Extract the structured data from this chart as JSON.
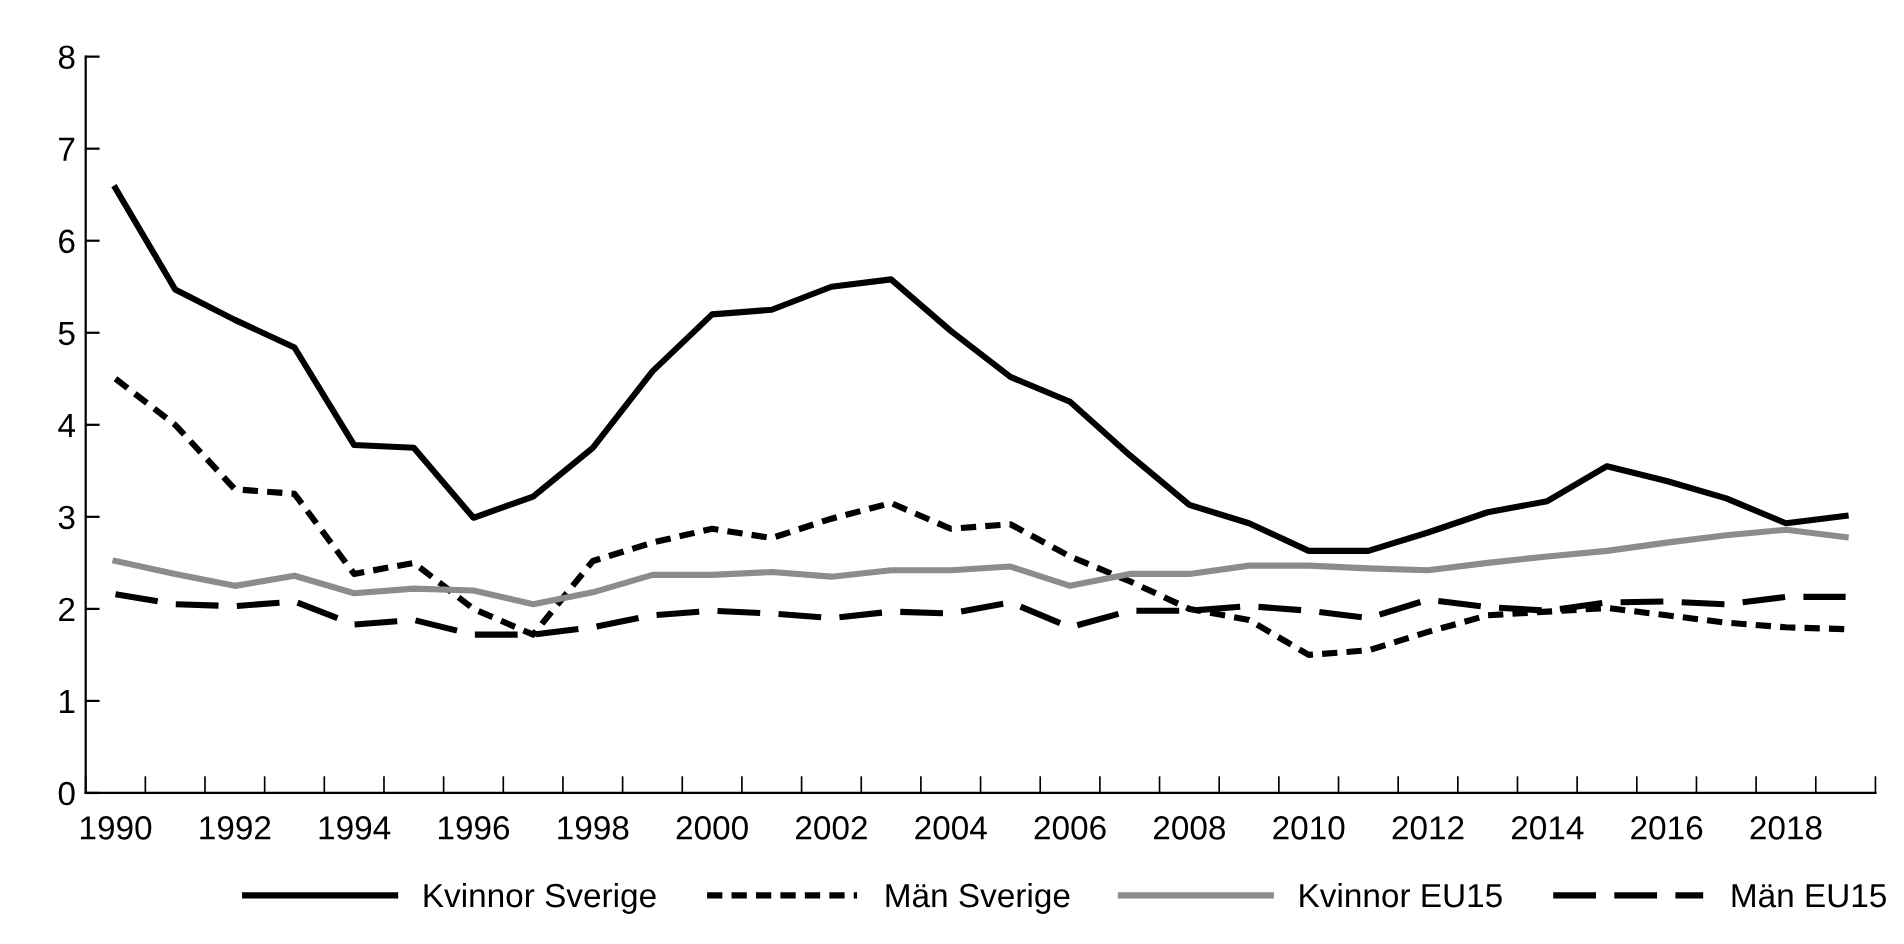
{
  "chart_data": {
    "type": "line",
    "categories": [
      "1990",
      null,
      "1992",
      null,
      "1994",
      null,
      "1996",
      null,
      "1998",
      null,
      "2000",
      null,
      "2002",
      null,
      "2004",
      null,
      "2006",
      null,
      "2008",
      null,
      "2010",
      null,
      "2012",
      null,
      "2014",
      null,
      "2016",
      null,
      "2018",
      null
    ],
    "series": [
      {
        "name": "Kvinnor Sverige",
        "color": "#000000",
        "line_style": "solid",
        "values": [
          6.57,
          5.47,
          5.14,
          4.84,
          3.78,
          3.75,
          2.99,
          3.22,
          3.75,
          4.58,
          5.2,
          5.25,
          5.5,
          5.58,
          5.02,
          4.52,
          4.25,
          3.67,
          3.13,
          2.93,
          2.63,
          2.63,
          2.83,
          3.05,
          3.17,
          3.55,
          3.39,
          3.2,
          2.93,
          3.01
        ]
      },
      {
        "name": "Män Sverige",
        "color": "#000000",
        "line_style": "dotted",
        "values": [
          4.5,
          4.0,
          3.3,
          3.25,
          2.38,
          2.5,
          2.0,
          1.72,
          2.52,
          2.72,
          2.87,
          2.77,
          2.98,
          3.15,
          2.87,
          2.92,
          2.57,
          2.3,
          2.0,
          1.88,
          1.5,
          1.55,
          1.75,
          1.93,
          1.97,
          2.01,
          1.93,
          1.85,
          1.8,
          1.78
        ]
      },
      {
        "name": "Kvinnor EU15",
        "color": "#8c8c8c",
        "line_style": "solid",
        "values": [
          2.52,
          2.38,
          2.25,
          2.36,
          2.17,
          2.22,
          2.2,
          2.05,
          2.18,
          2.37,
          2.37,
          2.4,
          2.35,
          2.42,
          2.42,
          2.46,
          2.25,
          2.38,
          2.38,
          2.47,
          2.47,
          2.44,
          2.42,
          2.5,
          2.57,
          2.63,
          2.72,
          2.8,
          2.86,
          2.78
        ]
      },
      {
        "name": "Män EU15",
        "color": "#000000",
        "line_style": "dashed",
        "values": [
          2.16,
          2.05,
          2.03,
          2.08,
          1.83,
          1.88,
          1.72,
          1.72,
          1.8,
          1.93,
          1.98,
          1.95,
          1.9,
          1.97,
          1.95,
          2.07,
          1.8,
          1.98,
          1.98,
          2.03,
          1.98,
          1.9,
          2.1,
          2.02,
          1.98,
          2.07,
          2.08,
          2.05,
          2.13,
          2.13
        ]
      }
    ],
    "ylim": [
      0,
      8
    ],
    "yticks": [
      0,
      1,
      2,
      3,
      4,
      5,
      6,
      7,
      8
    ],
    "grid": false,
    "legend": "bottom",
    "marker": "none"
  }
}
